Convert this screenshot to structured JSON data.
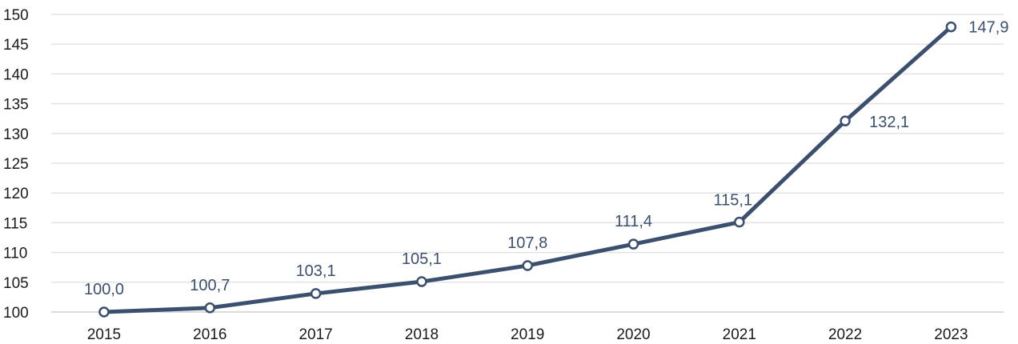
{
  "chart_data": {
    "type": "line",
    "title": "",
    "xlabel": "",
    "ylabel": "",
    "categories": [
      "2015",
      "2016",
      "2017",
      "2018",
      "2019",
      "2020",
      "2021",
      "2022",
      "2023"
    ],
    "series": [
      {
        "values": [
          100.0,
          100.7,
          103.1,
          105.1,
          107.8,
          111.4,
          115.1,
          132.1,
          147.9
        ],
        "labels": [
          "100,0",
          "100,7",
          "103,1",
          "105,1",
          "107,8",
          "111,4",
          "115,1",
          "132,1",
          "147,9"
        ],
        "color": "#3b4f6e"
      }
    ],
    "ylim": [
      100,
      150
    ],
    "y_ticks": [
      100,
      105,
      110,
      115,
      120,
      125,
      130,
      135,
      140,
      145,
      150
    ],
    "grid": "horizontal",
    "legend": "none"
  }
}
